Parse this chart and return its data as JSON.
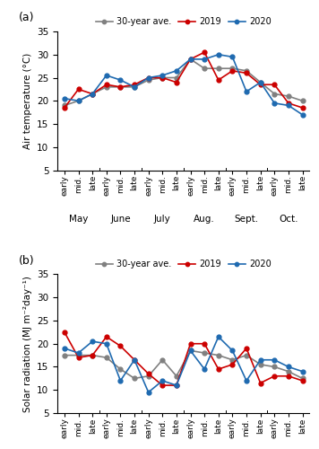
{
  "panel_a": {
    "title": "(a)",
    "ylabel": "Air temperature (°C)",
    "ylim": [
      5,
      35
    ],
    "yticks": [
      5,
      10,
      15,
      20,
      25,
      30,
      35
    ],
    "series": {
      "30-year ave.": {
        "color": "#808080",
        "marker": "o",
        "values": [
          19.0,
          20.0,
          21.5,
          23.0,
          23.0,
          23.0,
          24.5,
          25.0,
          25.0,
          29.0,
          27.0,
          27.0,
          27.0,
          26.5,
          24.0,
          21.5,
          21.0,
          20.0
        ]
      },
      "2019": {
        "color": "#cc0000",
        "marker": "o",
        "values": [
          18.5,
          22.5,
          21.5,
          23.5,
          23.0,
          23.5,
          25.0,
          25.0,
          24.0,
          29.0,
          30.5,
          24.5,
          26.5,
          26.0,
          23.5,
          23.5,
          19.5,
          18.5
        ]
      },
      "2020": {
        "color": "#1f6ab0",
        "marker": "o",
        "values": [
          20.5,
          20.0,
          21.5,
          25.5,
          24.5,
          23.0,
          25.0,
          25.5,
          26.5,
          29.0,
          29.0,
          30.0,
          29.5,
          22.0,
          24.0,
          19.5,
          19.0,
          17.0
        ]
      }
    }
  },
  "panel_b": {
    "title": "(b)",
    "ylabel": "Solar radiation (MJ m⁻²day⁻¹)",
    "ylim": [
      5,
      35
    ],
    "yticks": [
      5,
      10,
      15,
      20,
      25,
      30,
      35
    ],
    "series": {
      "30-year ave.": {
        "color": "#808080",
        "marker": "o",
        "values": [
          17.5,
          17.5,
          17.5,
          17.0,
          14.5,
          12.5,
          13.0,
          16.5,
          13.0,
          18.5,
          18.0,
          17.5,
          16.5,
          17.5,
          15.5,
          15.0,
          14.0,
          12.5
        ]
      },
      "2019": {
        "color": "#cc0000",
        "marker": "o",
        "values": [
          22.5,
          17.0,
          17.5,
          21.5,
          19.5,
          16.5,
          13.5,
          11.0,
          11.0,
          20.0,
          20.0,
          14.5,
          15.5,
          19.0,
          11.5,
          13.0,
          13.0,
          12.0
        ]
      },
      "2020": {
        "color": "#1f6ab0",
        "marker": "o",
        "values": [
          19.0,
          18.0,
          20.5,
          20.0,
          12.0,
          16.5,
          9.5,
          12.0,
          11.0,
          18.5,
          14.5,
          21.5,
          18.5,
          12.0,
          16.5,
          16.5,
          15.0,
          14.0
        ]
      }
    }
  },
  "x_months": [
    "May",
    "June",
    "July",
    "Aug.",
    "Sept.",
    "Oct."
  ],
  "x_periods": [
    "early",
    "mid.",
    "late"
  ],
  "legend_order": [
    "30-year ave.",
    "2019",
    "2020"
  ]
}
